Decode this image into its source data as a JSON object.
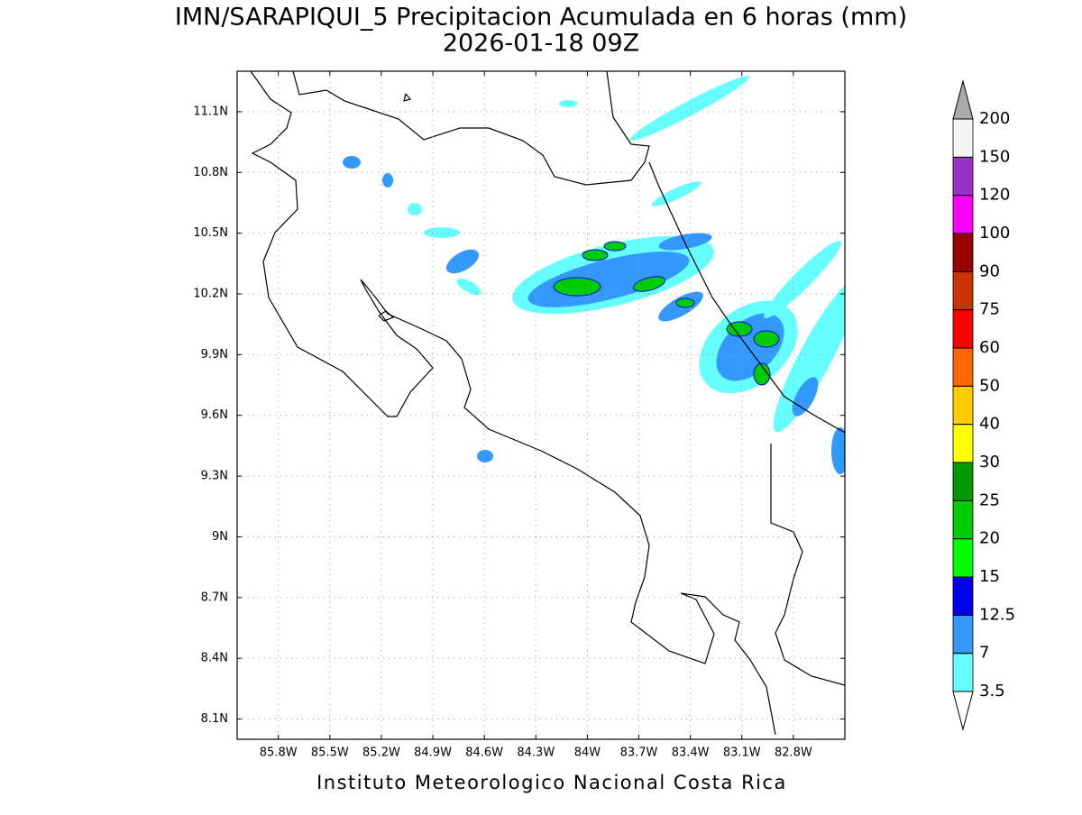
{
  "title": "IMN/SARAPIQUI_5 Precipitacion Acumulada en 6 horas (mm)",
  "subtitle": "2026-01-18 09Z",
  "map": {
    "lonlim": [
      -86.04,
      -82.5
    ],
    "latlim": [
      8.0,
      11.3
    ],
    "grid": true,
    "lon_ticks": [
      {
        "value": -85.8,
        "label": "85.8W"
      },
      {
        "value": -85.5,
        "label": "85.5W"
      },
      {
        "value": -85.2,
        "label": "85.2W"
      },
      {
        "value": -84.9,
        "label": "84.9W"
      },
      {
        "value": -84.6,
        "label": "84.6W"
      },
      {
        "value": -84.3,
        "label": "84.3W"
      },
      {
        "value": -84.0,
        "label": "84W"
      },
      {
        "value": -83.7,
        "label": "83.7W"
      },
      {
        "value": -83.4,
        "label": "83.4W"
      },
      {
        "value": -83.1,
        "label": "83.1W"
      },
      {
        "value": -82.8,
        "label": "82.8W"
      }
    ],
    "lat_ticks": [
      {
        "value": 11.1,
        "label": "11.1N"
      },
      {
        "value": 10.8,
        "label": "10.8N"
      },
      {
        "value": 10.5,
        "label": "10.5N"
      },
      {
        "value": 10.2,
        "label": "10.2N"
      },
      {
        "value": 9.9,
        "label": "9.9N"
      },
      {
        "value": 9.6,
        "label": "9.6N"
      },
      {
        "value": 9.3,
        "label": "9.3N"
      },
      {
        "value": 9.0,
        "label": "9N"
      },
      {
        "value": 8.7,
        "label": "8.7N"
      },
      {
        "value": 8.4,
        "label": "8.4N"
      },
      {
        "value": 8.1,
        "label": "8.1N"
      }
    ]
  },
  "colorbar": {
    "levels": [
      3.5,
      7,
      12.5,
      15,
      20,
      25,
      30,
      40,
      50,
      60,
      75,
      90,
      100,
      120,
      150,
      200
    ],
    "colors": [
      "#ffffff",
      "#66ffff",
      "#3399ff",
      "#0000ee",
      "#00ff00",
      "#00cc00",
      "#009900",
      "#ffff00",
      "#ffcc00",
      "#ff6600",
      "#ff0000",
      "#cc3300",
      "#990000",
      "#ff00ff",
      "#9933cc",
      "#f5f5f5",
      "#aaaaaa"
    ]
  },
  "footer": "Instituto Meteorologico Nacional Costa Rica"
}
